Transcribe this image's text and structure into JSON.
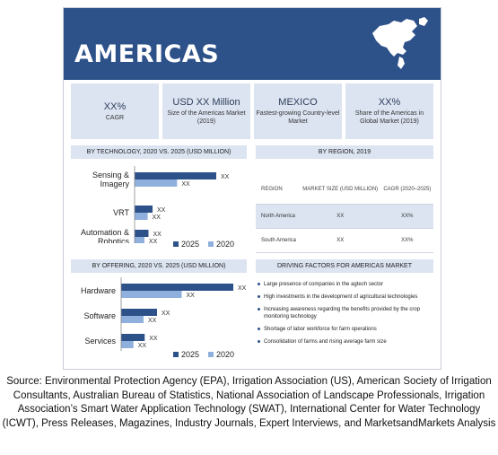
{
  "banner": {
    "title": "AMERICAS"
  },
  "kpis": [
    {
      "main": "XX%",
      "sub": "CAGR"
    },
    {
      "main": "USD XX Million",
      "sub": "Size of the Americas Market (2019)"
    },
    {
      "main": "MEXICO",
      "sub": "Fastest-growing Country-level Market"
    },
    {
      "main": "XX%",
      "sub": "Share of the Americas in Global Market (2019)"
    }
  ],
  "sections": {
    "by_technology": "BY TECHNOLOGY, 2020 VS. 2025 (USD MILLION)",
    "by_region": "BY REGION, 2019",
    "by_offering": "BY OFFERING, 2020 VS. 2025 (USD MILLION)",
    "driving_factors": "DRIVING FACTORS FOR AMERICAS MARKET"
  },
  "region_table": {
    "headers": [
      "REGION",
      "MARKET SIZE (USD MILLION)",
      "CAGR (2020–2025)"
    ],
    "rows": [
      {
        "region": "North America",
        "size": "XX",
        "cagr": "XX%"
      },
      {
        "region": "South America",
        "size": "XX",
        "cagr": "XX%"
      }
    ]
  },
  "driving_factors": [
    "Large presence of companies in the agtech sector",
    "High investments in the development of agricultural technologies",
    "Increasing awareness regarding the benefits provided by the crop monitoring technology",
    "Shortage of labor workforce for farm operations",
    "Consolidation of farms and rising average farm size"
  ],
  "source": "Source: Environmental Protection Agency (EPA), Irrigation Association (US), American Society of Irrigation Consultants, Australian Bureau of Statistics, National Association of Landscape Professionals, Irrigation Association’s Smart Water Application Technology (SWAT), International Center for Water Technology (ICWT), Press Releases, Magazines, Industry Journals, Expert Interviews, and MarketsandMarkets Analysis",
  "colors": {
    "banner": "#2d5189",
    "series_2025": "#2d5189",
    "series_2020": "#8fb0dc",
    "panel": "#dce4f1"
  },
  "chart_data": [
    {
      "type": "bar",
      "orientation": "horizontal",
      "title": "BY TECHNOLOGY, 2020 VS. 2025 (USD MILLION)",
      "categories": [
        "Sensing & Imagery",
        "VRT",
        "Automation & Robotics"
      ],
      "category_lines": [
        [
          "Sensing &",
          "Imagery"
        ],
        [
          "VRT"
        ],
        [
          "Automation &",
          "Robotics"
        ]
      ],
      "series": [
        {
          "name": "2025",
          "values": [
            100,
            22,
            17
          ],
          "labels": [
            "XX",
            "XX",
            "XX"
          ]
        },
        {
          "name": "2020",
          "values": [
            52,
            16,
            12
          ],
          "labels": [
            "XX",
            "XX",
            "XX"
          ]
        }
      ],
      "xlim": [
        0,
        100
      ],
      "legend_position": "bottom-right"
    },
    {
      "type": "bar",
      "orientation": "horizontal",
      "title": "BY OFFERING, 2020 VS. 2025 (USD MILLION)",
      "categories": [
        "Hardware",
        "Software",
        "Services"
      ],
      "category_lines": [
        [
          "Hardware"
        ],
        [
          "Software"
        ],
        [
          "Services"
        ]
      ],
      "series": [
        {
          "name": "2025",
          "values": [
            100,
            32,
            21
          ],
          "labels": [
            "XX",
            "XX",
            "XX"
          ]
        },
        {
          "name": "2020",
          "values": [
            54,
            20,
            11
          ],
          "labels": [
            "XX",
            "XX",
            "XX"
          ]
        }
      ],
      "xlim": [
        0,
        100
      ],
      "legend_position": "bottom-right"
    }
  ]
}
